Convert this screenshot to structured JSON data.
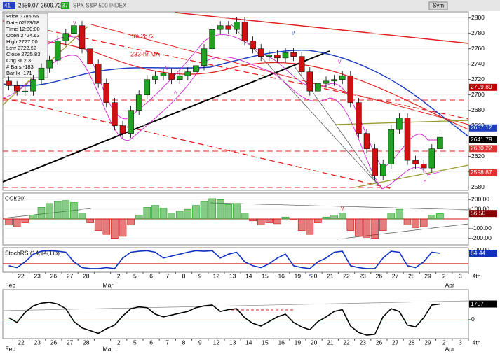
{
  "header": {
    "symbol": "SPX S&P 500 INDEX",
    "bar_count": "41",
    "last": "2659.07",
    "low": "2609.72",
    "chg": "37",
    "button": "Sym"
  },
  "info": [
    "Price 2785.65",
    "Date 02/23/18",
    "Time 12:30:00",
    "Open 2724.63",
    "High 2727.00",
    "Low 2722.62",
    "Close 2725.83",
    "Chg % 2.3",
    "# Bars -183",
    "Bar Ix -171"
  ],
  "annotations": [
    "fm 2872",
    "233-hr MA",
    "v",
    "v",
    "v",
    "v",
    "^",
    "^",
    "^",
    "v",
    "^"
  ],
  "x_axis": {
    "categories": [
      null,
      "22",
      "23",
      "26",
      "27",
      "28",
      null,
      "2",
      "5",
      "6",
      "7",
      "8",
      "9",
      "12",
      "13",
      "14",
      "15",
      "16",
      "19",
      "20",
      "21",
      "22",
      "23",
      "26",
      "27",
      "28",
      "29",
      "2",
      "3",
      "4th"
    ],
    "months": [
      "Feb",
      null,
      null,
      null,
      null,
      null,
      "Mar",
      null,
      null,
      null,
      null,
      null,
      null,
      null,
      null,
      null,
      null,
      null,
      null,
      null,
      null,
      null,
      null,
      null,
      null,
      null,
      null,
      "Apr",
      null,
      null
    ]
  },
  "chart_data": [
    {
      "type": "candlestick",
      "up_color": "#21a121",
      "down_color": "#d01010",
      "open": [
        2718,
        2712,
        2705,
        2705,
        2720,
        2735,
        2745,
        2770,
        2780,
        2790,
        2760,
        2740,
        2715,
        2690,
        2660,
        2650,
        2680,
        2700,
        2720,
        2725,
        2728,
        2720,
        2725,
        2730,
        2738,
        2760,
        2785,
        2790,
        2785,
        2795,
        2770,
        2760,
        2750,
        2752,
        2748,
        2755,
        2750,
        2730,
        2705,
        2715,
        2718,
        2720,
        2725,
        2690,
        2650,
        2630,
        2595,
        2610,
        2655,
        2670,
        2615,
        2610,
        2605,
        2630
      ],
      "high": [
        2724,
        2718,
        2711,
        2726,
        2741,
        2751,
        2776,
        2786,
        2796,
        2796,
        2766,
        2746,
        2721,
        2696,
        2666,
        2686,
        2706,
        2726,
        2731,
        2734,
        2734,
        2731,
        2736,
        2744,
        2766,
        2791,
        2796,
        2796,
        2801,
        2801,
        2776,
        2766,
        2758,
        2758,
        2761,
        2761,
        2756,
        2736,
        2721,
        2724,
        2726,
        2731,
        2731,
        2696,
        2656,
        2636,
        2616,
        2661,
        2676,
        2676,
        2621,
        2616,
        2636,
        2651
      ],
      "low": [
        2706,
        2699,
        2699,
        2699,
        2714,
        2729,
        2739,
        2764,
        2774,
        2754,
        2734,
        2709,
        2684,
        2654,
        2644,
        2644,
        2674,
        2694,
        2714,
        2719,
        2714,
        2714,
        2719,
        2724,
        2732,
        2754,
        2779,
        2779,
        2779,
        2764,
        2754,
        2744,
        2744,
        2742,
        2742,
        2744,
        2724,
        2699,
        2699,
        2709,
        2712,
        2714,
        2684,
        2644,
        2624,
        2589,
        2589,
        2604,
        2649,
        2609,
        2604,
        2599,
        2599,
        2624
      ],
      "close": [
        2712,
        2705,
        2705,
        2720,
        2735,
        2745,
        2770,
        2780,
        2790,
        2760,
        2740,
        2715,
        2690,
        2660,
        2650,
        2680,
        2700,
        2720,
        2725,
        2728,
        2720,
        2725,
        2730,
        2738,
        2760,
        2785,
        2790,
        2785,
        2795,
        2770,
        2760,
        2750,
        2752,
        2748,
        2755,
        2750,
        2730,
        2705,
        2715,
        2718,
        2720,
        2725,
        2690,
        2650,
        2630,
        2595,
        2610,
        2655,
        2670,
        2615,
        2610,
        2605,
        2630,
        2645
      ],
      "ylim": [
        2576,
        2807
      ],
      "yticks": [
        2580,
        2600,
        2620,
        2640,
        2660,
        2680,
        2700,
        2720,
        2740,
        2760,
        2780,
        2800
      ],
      "price_tags": [
        {
          "value": 2709.89,
          "color": "#c00000"
        },
        {
          "value": 2657.12,
          "color": "#1f3fbf"
        },
        {
          "value": 2641.79,
          "color": "#000000"
        },
        {
          "value": 2630.22,
          "color": "#e03030"
        },
        {
          "value": 2598.87,
          "color": "#e03030"
        }
      ]
    },
    {
      "type": "bar",
      "title": "CCI(20)",
      "up_color": "#21a121",
      "down_color": "#d01010",
      "values": [
        -60,
        -80,
        -40,
        40,
        120,
        160,
        180,
        190,
        170,
        60,
        -40,
        -120,
        -160,
        -200,
        -180,
        -60,
        40,
        120,
        140,
        110,
        60,
        80,
        100,
        140,
        180,
        210,
        200,
        150,
        160,
        60,
        -20,
        -60,
        -40,
        -50,
        20,
        -10,
        -120,
        -160,
        -40,
        20,
        40,
        60,
        -120,
        -180,
        -190,
        -200,
        -120,
        60,
        100,
        -60,
        -90,
        -80,
        40,
        56.5
      ],
      "ylim": [
        -260,
        260
      ],
      "yticks": [
        {
          "value": 200,
          "label": "200.00"
        },
        {
          "value": 100,
          "label": "100.00"
        },
        {
          "value": -100,
          "label": "-100.00"
        },
        {
          "value": -200,
          "label": "-200.00"
        }
      ],
      "current": {
        "value": 56.5,
        "label": "56.50",
        "color": "#8b0000"
      }
    },
    {
      "type": "line",
      "title": "StochRSI(14,14(1)3)",
      "color": "#1030c0",
      "values": [
        20,
        10,
        40,
        80,
        95,
        98,
        95,
        90,
        40,
        10,
        5,
        5,
        10,
        5,
        60,
        90,
        95,
        98,
        90,
        60,
        70,
        80,
        90,
        98,
        95,
        98,
        60,
        80,
        90,
        40,
        20,
        10,
        30,
        60,
        80,
        20,
        10,
        5,
        40,
        60,
        90,
        95,
        20,
        10,
        5,
        5,
        60,
        95,
        90,
        20,
        10,
        40,
        90,
        84.44
      ],
      "ylim": [
        -10,
        110
      ],
      "yticks": [
        {
          "value": 100,
          "label": "100.00"
        }
      ],
      "current": {
        "value": 84.44,
        "label": "84.44",
        "color": "#1030c0"
      }
    },
    {
      "type": "line",
      "color": "#000000",
      "values": [
        200,
        -300,
        800,
        1500,
        1800,
        1900,
        1700,
        1200,
        -200,
        -900,
        -1200,
        -1500,
        -1000,
        -600,
        400,
        1200,
        1400,
        1300,
        600,
        300,
        500,
        700,
        900,
        1300,
        1500,
        1600,
        900,
        1100,
        1200,
        200,
        -400,
        -700,
        -200,
        300,
        600,
        -300,
        -800,
        -1100,
        -200,
        300,
        900,
        1100,
        -700,
        -1400,
        -1700,
        -1600,
        300,
        1200,
        900,
        -600,
        -800,
        200,
        1600,
        1707
      ],
      "ylim": [
        -2000,
        3200
      ],
      "yticks": [
        0
      ],
      "current": {
        "value": 1707,
        "label": "1707",
        "color": "#000000"
      }
    }
  ]
}
